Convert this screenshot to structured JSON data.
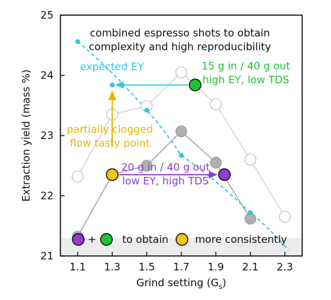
{
  "chart_data": {
    "type": "scatter",
    "title": "",
    "xlabel": "Grind setting (G",
    "xlabel_sub": "s",
    "xlabel_tail": ")",
    "ylabel": "Extraction yield (mass %)",
    "xlim": [
      1.0,
      2.4
    ],
    "ylim": [
      21,
      25
    ],
    "xticks": [
      "1.1",
      "1.3",
      "1.5",
      "1.7",
      "1.9",
      "2.1",
      "2.3"
    ],
    "yticks": [
      "21",
      "22",
      "23",
      "24",
      "25"
    ],
    "series": [
      {
        "style": "light-gray-open",
        "color": "#d0d0d0",
        "points": [
          [
            1.1,
            22.32
          ],
          [
            1.3,
            23.35
          ],
          [
            1.5,
            23.49
          ],
          [
            1.7,
            24.05
          ],
          [
            1.9,
            23.52
          ],
          [
            2.1,
            22.6
          ],
          [
            2.3,
            21.65
          ]
        ]
      },
      {
        "style": "dark-gray-filled",
        "color": "#b0b0b0",
        "points": [
          [
            1.1,
            21.32
          ],
          [
            1.3,
            22.35
          ],
          [
            1.5,
            22.5
          ],
          [
            1.7,
            23.07
          ],
          [
            1.9,
            22.55
          ],
          [
            2.1,
            21.62
          ]
        ]
      },
      {
        "style": "cyan-dashed-expected",
        "color": "#33c7e6",
        "points": [
          [
            1.1,
            24.56
          ],
          [
            1.5,
            23.42
          ],
          [
            1.7,
            22.67
          ],
          [
            2.1,
            21.72
          ]
        ],
        "curve_end": [
          2.32,
          21.1
        ]
      }
    ],
    "highlights": [
      {
        "name": "partially-clogged",
        "x": 1.3,
        "y": 22.35,
        "color": "#f3c318"
      },
      {
        "name": "fine-shot",
        "x": 1.78,
        "y": 23.84,
        "color": "#1ec432"
      },
      {
        "name": "coarse-shot",
        "x": 1.95,
        "y": 22.35,
        "color": "#8e3ed0"
      }
    ],
    "expected_point": {
      "x": 1.3,
      "y": 23.84
    },
    "annotations": {
      "combined_line1": "combined espresso shots to obtain",
      "combined_line2": "complexity and high reproducibility",
      "expected": "expected EY",
      "green_line1": "15 g in / 40 g out",
      "green_line2": "high EY, low TDS",
      "yellow_line1": "partially clogged",
      "yellow_line2": "flow tasty point",
      "purple_line1": "20 g in  / 40 g out",
      "purple_line2": "low EY, high TDS",
      "legend_plus": "+",
      "legend_to_obtain": "to obtain",
      "legend_more": "more consistently"
    },
    "colors": {
      "cyan": "#33c7e6",
      "green": "#1ec432",
      "yellow": "#e6b800",
      "purple": "#8e3ed0",
      "band": "#ececec"
    }
  }
}
